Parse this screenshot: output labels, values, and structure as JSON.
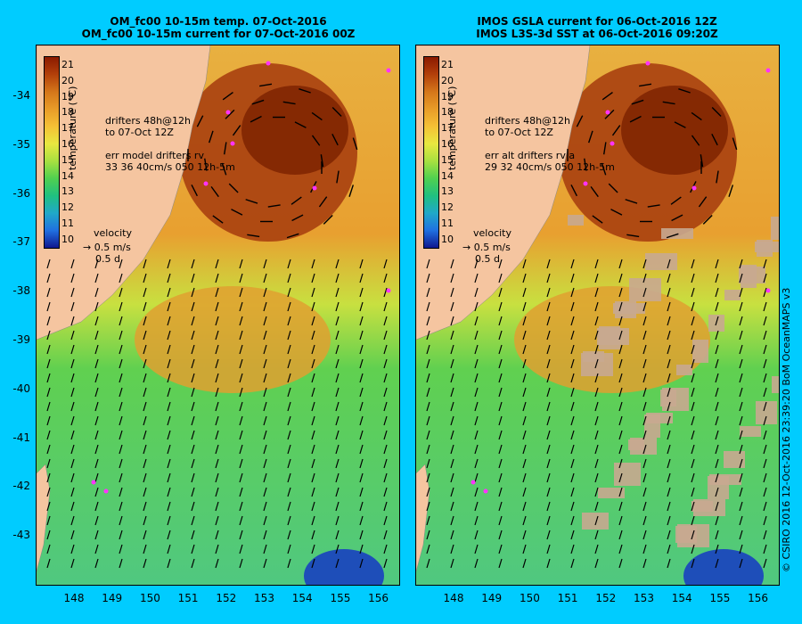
{
  "left_panel": {
    "title_line1": "OM_fc00 10-15m temp. 07-Oct-2016",
    "title_line2": "OM_fc00 10-15m current for 07-Oct-2016 00Z",
    "drifter_text": [
      "drifters 48h@12h",
      "to 07-Oct 12Z"
    ],
    "err_text": [
      "err model drifters rv",
      "33 36 40cm/s 050 12h-5m"
    ]
  },
  "right_panel": {
    "title_line1": "IMOS GSLA current for 06-Oct-2016 12Z",
    "title_line2": "IMOS L3S-3d SST at 06-Oct-2016 09:20Z",
    "drifter_text": [
      "drifters 48h@12h",
      "to 07-Oct 12Z"
    ],
    "err_text": [
      "err alt drifters rv a",
      "29 32 40cm/s 050 12h-5m"
    ]
  },
  "colorbar": {
    "label": "temperature (°C)",
    "ticks": [
      "21",
      "20",
      "19",
      "18",
      "17",
      "16",
      "15",
      "14",
      "13",
      "12",
      "11",
      "10"
    ],
    "colors": [
      "#8b1a00",
      "#b3400a",
      "#d4761a",
      "#e89c28",
      "#f5c035",
      "#e8e840",
      "#a8e040",
      "#50d050",
      "#20c080",
      "#20a8c8",
      "#2070e0",
      "#101890"
    ]
  },
  "velocity_key": {
    "title": "velocity",
    "speed": "0.5 m/s",
    "duration": "0.5 d"
  },
  "x_ticks": [
    "148",
    "149",
    "150",
    "151",
    "152",
    "153",
    "154",
    "155",
    "156"
  ],
  "y_ticks": [
    "-34",
    "-35",
    "-36",
    "-37",
    "-38",
    "-39",
    "-40",
    "-41",
    "-42",
    "-43"
  ],
  "credit": "© CSIRO 2016  12-Oct-2016 23:39:20 BoM OceanMAPS v3",
  "colors": {
    "background": "#00ccff",
    "land": "#f5c5a0",
    "drifter": "#ff33ff",
    "cloud_mask": "#c8a890"
  }
}
